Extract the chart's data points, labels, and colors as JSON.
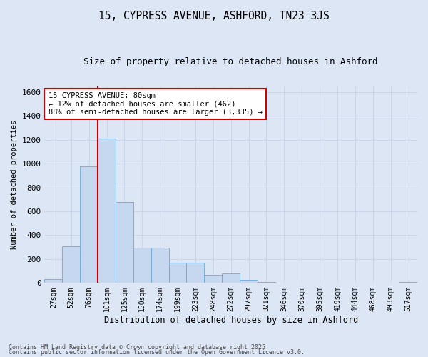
{
  "title1": "15, CYPRESS AVENUE, ASHFORD, TN23 3JS",
  "title2": "Size of property relative to detached houses in Ashford",
  "xlabel": "Distribution of detached houses by size in Ashford",
  "ylabel": "Number of detached properties",
  "categories": [
    "27sqm",
    "52sqm",
    "76sqm",
    "101sqm",
    "125sqm",
    "150sqm",
    "174sqm",
    "199sqm",
    "223sqm",
    "248sqm",
    "272sqm",
    "297sqm",
    "321sqm",
    "346sqm",
    "370sqm",
    "395sqm",
    "419sqm",
    "444sqm",
    "468sqm",
    "493sqm",
    "517sqm"
  ],
  "values": [
    30,
    310,
    980,
    1210,
    680,
    295,
    295,
    170,
    170,
    70,
    80,
    28,
    8,
    4,
    4,
    4,
    2,
    2,
    2,
    2,
    5
  ],
  "bar_color": "#c5d8f0",
  "bar_edge_color": "#6aaad4",
  "property_sqm": 80,
  "vline_color": "#cc0000",
  "annotation_text": "15 CYPRESS AVENUE: 80sqm\n← 12% of detached houses are smaller (462)\n88% of semi-detached houses are larger (3,335) →",
  "annotation_box_color": "#ffffff",
  "annotation_box_edge_color": "#cc0000",
  "ylim": [
    0,
    1650
  ],
  "yticks": [
    0,
    200,
    400,
    600,
    800,
    1000,
    1200,
    1400,
    1600
  ],
  "grid_color": "#c8d4e8",
  "bg_color": "#dce6f5",
  "footer1": "Contains HM Land Registry data © Crown copyright and database right 2025.",
  "footer2": "Contains public sector information licensed under the Open Government Licence v3.0."
}
